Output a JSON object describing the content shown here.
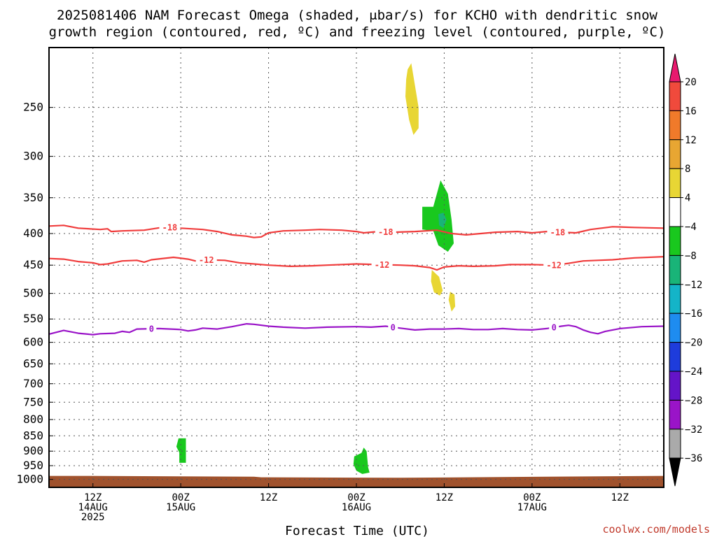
{
  "chart_data": {
    "type": "heatmap",
    "title_lines": [
      "2025081406 NAM Forecast Omega (shaded, μbar/s) for KCHO with dendritic snow",
      "growth region (contoured, red, ºC) and freezing level (contoured, purple, ºC)"
    ],
    "xlabel": "Forecast Time (UTC)",
    "credit": "coolwx.com/models",
    "x_range_hours": [
      0,
      84
    ],
    "y_axis": {
      "scale": "pressure",
      "range_hPa": [
        200,
        1030
      ],
      "ticks": [
        250,
        300,
        350,
        400,
        450,
        500,
        550,
        600,
        650,
        700,
        750,
        800,
        850,
        900,
        950,
        1000
      ]
    },
    "x_ticks": [
      {
        "hour": 6,
        "lines": [
          "12Z",
          "14AUG",
          "2025"
        ]
      },
      {
        "hour": 18,
        "lines": [
          "00Z",
          "15AUG"
        ]
      },
      {
        "hour": 30,
        "lines": [
          "12Z"
        ]
      },
      {
        "hour": 42,
        "lines": [
          "00Z",
          "16AUG"
        ]
      },
      {
        "hour": 54,
        "lines": [
          "12Z"
        ]
      },
      {
        "hour": 66,
        "lines": [
          "00Z",
          "17AUG"
        ]
      },
      {
        "hour": 78,
        "lines": [
          "12Z"
        ]
      }
    ],
    "grid": true,
    "colorbar": {
      "position": "right",
      "labels": [
        "20",
        "16",
        "12",
        "8",
        "4",
        "−4",
        "−8",
        "−12",
        "−16",
        "−20",
        "−24",
        "−28",
        "−32",
        "−36"
      ],
      "colors_top_to_bottom": [
        "#e8196e",
        "#f04a3c",
        "#f07a2a",
        "#e8a632",
        "#e8d634",
        "#ffffff",
        "#19c81e",
        "#19b478",
        "#14b4c8",
        "#1e8cf0",
        "#1e3cdc",
        "#6414c8",
        "#9a14c8",
        "#aaaaaa",
        "#000000"
      ]
    },
    "series": [
      {
        "type": "contour",
        "color": "#f03c3c",
        "level_label": "-18",
        "label_hours": [
          16.5,
          46,
          69.5
        ],
        "points": [
          [
            0,
            389
          ],
          [
            2,
            388
          ],
          [
            4,
            392
          ],
          [
            7,
            394
          ],
          [
            8,
            393
          ],
          [
            8.5,
            397
          ],
          [
            10,
            396
          ],
          [
            13,
            395
          ],
          [
            16,
            390
          ],
          [
            18,
            392
          ],
          [
            21,
            394
          ],
          [
            23,
            397
          ],
          [
            25,
            402
          ],
          [
            27,
            404
          ],
          [
            28,
            406
          ],
          [
            29,
            405
          ],
          [
            30,
            399
          ],
          [
            32,
            396
          ],
          [
            35,
            395
          ],
          [
            37,
            394
          ],
          [
            40,
            395
          ],
          [
            42,
            397
          ],
          [
            43,
            399
          ],
          [
            45,
            397
          ],
          [
            47,
            398
          ],
          [
            50,
            397
          ],
          [
            53,
            395
          ],
          [
            55,
            400
          ],
          [
            57,
            402
          ],
          [
            59,
            400
          ],
          [
            61,
            398
          ],
          [
            64,
            397
          ],
          [
            66,
            399
          ],
          [
            68,
            397
          ],
          [
            70,
            398
          ],
          [
            72,
            399
          ],
          [
            74,
            394
          ],
          [
            77,
            390
          ],
          [
            80,
            391
          ],
          [
            84,
            392
          ]
        ]
      },
      {
        "type": "contour",
        "color": "#f03c3c",
        "level_label": "-12",
        "label_hours": [
          21.5,
          45.5,
          69
        ],
        "points": [
          [
            0,
            439
          ],
          [
            2,
            440
          ],
          [
            4,
            444
          ],
          [
            6,
            446
          ],
          [
            7,
            449
          ],
          [
            8,
            448
          ],
          [
            10,
            443
          ],
          [
            12,
            442
          ],
          [
            13,
            445
          ],
          [
            14,
            441
          ],
          [
            17,
            437
          ],
          [
            19,
            440
          ],
          [
            20,
            443
          ],
          [
            21,
            441
          ],
          [
            24,
            442
          ],
          [
            26,
            446
          ],
          [
            28,
            448
          ],
          [
            30,
            450
          ],
          [
            33,
            452
          ],
          [
            36,
            451
          ],
          [
            38,
            450
          ],
          [
            42,
            448
          ],
          [
            45,
            449
          ],
          [
            48,
            450
          ],
          [
            50,
            451
          ],
          [
            52,
            454
          ],
          [
            53,
            458
          ],
          [
            54,
            453
          ],
          [
            56,
            451
          ],
          [
            58,
            452
          ],
          [
            61,
            451
          ],
          [
            63,
            449
          ],
          [
            66,
            449
          ],
          [
            69,
            450
          ],
          [
            71,
            447
          ],
          [
            73,
            443
          ],
          [
            75,
            442
          ],
          [
            77,
            441
          ],
          [
            80,
            438
          ],
          [
            84,
            436
          ]
        ]
      },
      {
        "type": "contour",
        "color": "#9a14c8",
        "level_label": "0",
        "label_hours": [
          14,
          47,
          69
        ],
        "points": [
          [
            0,
            582
          ],
          [
            2,
            574
          ],
          [
            4,
            580
          ],
          [
            6,
            583
          ],
          [
            7,
            581
          ],
          [
            9,
            580
          ],
          [
            10,
            576
          ],
          [
            11,
            578
          ],
          [
            12,
            571
          ],
          [
            15,
            570
          ],
          [
            18,
            572
          ],
          [
            19,
            575
          ],
          [
            20,
            573
          ],
          [
            21,
            569
          ],
          [
            23,
            571
          ],
          [
            25,
            566
          ],
          [
            27,
            560
          ],
          [
            28,
            561
          ],
          [
            30,
            565
          ],
          [
            32,
            567
          ],
          [
            35,
            569
          ],
          [
            38,
            567
          ],
          [
            42,
            566
          ],
          [
            44,
            567
          ],
          [
            46,
            565
          ],
          [
            48,
            569
          ],
          [
            50,
            573
          ],
          [
            52,
            571
          ],
          [
            54,
            571
          ],
          [
            56,
            570
          ],
          [
            58,
            572
          ],
          [
            60,
            572
          ],
          [
            62,
            570
          ],
          [
            64,
            572
          ],
          [
            66,
            573
          ],
          [
            68,
            570
          ],
          [
            70,
            565
          ],
          [
            71,
            563
          ],
          [
            72,
            566
          ],
          [
            73,
            573
          ],
          [
            74,
            578
          ],
          [
            75,
            581
          ],
          [
            76,
            576
          ],
          [
            78,
            570
          ],
          [
            81,
            566
          ],
          [
            84,
            565
          ]
        ]
      }
    ],
    "shaded_regions": [
      {
        "band": "4 to 8",
        "color": "#e8d634",
        "points": [
          [
            49,
            217
          ],
          [
            49.5,
            212
          ],
          [
            50.5,
            250
          ],
          [
            50.5,
            270
          ],
          [
            49.8,
            277
          ],
          [
            49.2,
            262
          ],
          [
            48.7,
            240
          ],
          [
            48.8,
            225
          ]
        ]
      },
      {
        "band": "-8 to -4",
        "color": "#19c81e",
        "points": [
          [
            51,
            362
          ],
          [
            52.5,
            362
          ],
          [
            53.5,
            328
          ],
          [
            54.5,
            345
          ],
          [
            55,
            380
          ],
          [
            55.3,
            415
          ],
          [
            54.5,
            428
          ],
          [
            53.2,
            418
          ],
          [
            52.5,
            396
          ],
          [
            51,
            394
          ]
        ]
      },
      {
        "band": "-12 to -8",
        "color": "#19b478",
        "points": [
          [
            53.2,
            372
          ],
          [
            53.9,
            370
          ],
          [
            54.3,
            380
          ],
          [
            53.9,
            392
          ],
          [
            53.3,
            388
          ]
        ]
      },
      {
        "band": "4 to 8",
        "color": "#e8d634",
        "points": [
          [
            52.3,
            458
          ],
          [
            53.3,
            470
          ],
          [
            53.8,
            495
          ],
          [
            53.4,
            504
          ],
          [
            52.6,
            498
          ],
          [
            52.2,
            478
          ]
        ]
      },
      {
        "band": "4 to 8",
        "color": "#e8d634",
        "points": [
          [
            54.8,
            497
          ],
          [
            55.4,
            502
          ],
          [
            55.5,
            525
          ],
          [
            55.0,
            535
          ],
          [
            54.6,
            512
          ]
        ]
      },
      {
        "band": "-8 to -4",
        "color": "#19c81e",
        "points": [
          [
            17.7,
            858
          ],
          [
            18.7,
            858
          ],
          [
            18.7,
            940
          ],
          [
            17.8,
            940
          ],
          [
            17.8,
            905
          ],
          [
            17.4,
            885
          ]
        ]
      },
      {
        "band": "-8 to -4",
        "color": "#19c81e",
        "points": [
          [
            41.7,
            918
          ],
          [
            42.7,
            906
          ],
          [
            43.0,
            888
          ],
          [
            43.4,
            900
          ],
          [
            43.6,
            955
          ],
          [
            43.8,
            975
          ],
          [
            42.8,
            980
          ],
          [
            42.0,
            968
          ],
          [
            41.6,
            945
          ]
        ]
      }
    ],
    "ground": {
      "color": "#a0522d",
      "top_hPa_points": [
        [
          0,
          987
        ],
        [
          4,
          987
        ],
        [
          5,
          987
        ],
        [
          28,
          990
        ],
        [
          29,
          992
        ],
        [
          48,
          994
        ],
        [
          84,
          987
        ]
      ]
    }
  }
}
